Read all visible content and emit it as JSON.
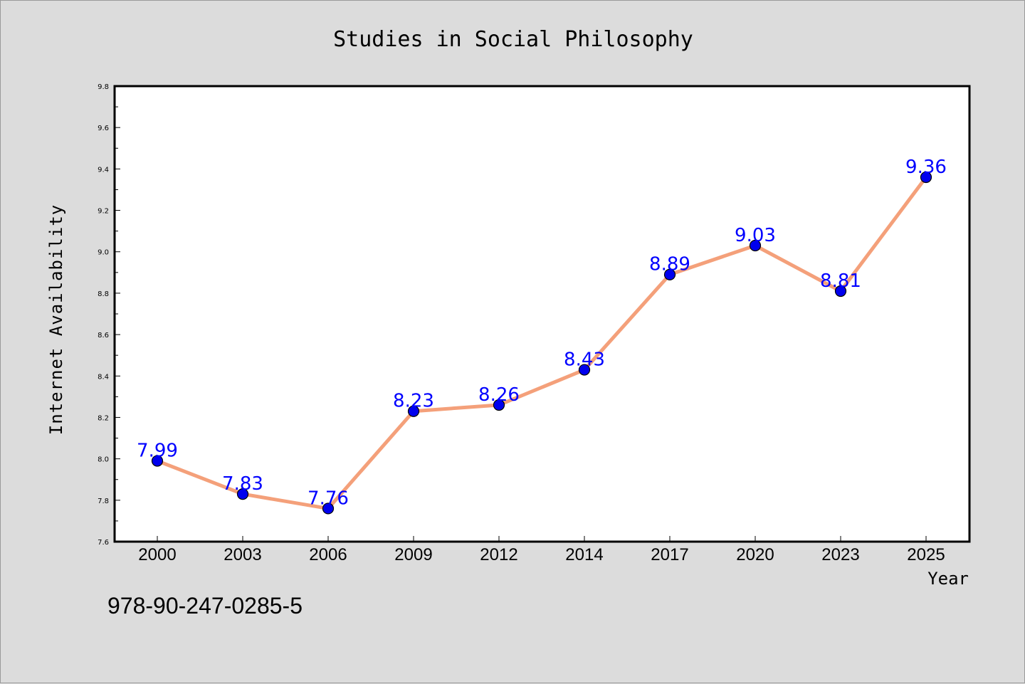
{
  "chart_data": {
    "type": "line",
    "title": "Studies in Social Philosophy",
    "xlabel": "Year",
    "ylabel": "Internet Availability",
    "categories": [
      "2000",
      "2003",
      "2006",
      "2009",
      "2012",
      "2014",
      "2017",
      "2020",
      "2023",
      "2025"
    ],
    "values": [
      7.99,
      7.83,
      7.76,
      8.23,
      8.26,
      8.43,
      8.89,
      9.03,
      8.81,
      9.36
    ],
    "data_labels": [
      "7.99",
      "7.83",
      "7.76",
      "8.23",
      "8.26",
      "8.43",
      "8.89",
      "9.03",
      "8.81",
      "9.36"
    ],
    "ylim": [
      7.6,
      9.8
    ],
    "yticks": [
      "7.6",
      "7.8",
      "8.0",
      "8.2",
      "8.4",
      "8.6",
      "8.8",
      "9.0",
      "9.2",
      "9.4",
      "9.6",
      "9.8"
    ],
    "grid": false,
    "legend": "none",
    "colors": {
      "line": "#f4a07a",
      "marker": "#0000ee",
      "label": "#0000ff",
      "plot_bg": "#ffffff",
      "page_bg": "#dcdcdc"
    }
  },
  "footer": {
    "isbn": "978-90-247-0285-5"
  }
}
